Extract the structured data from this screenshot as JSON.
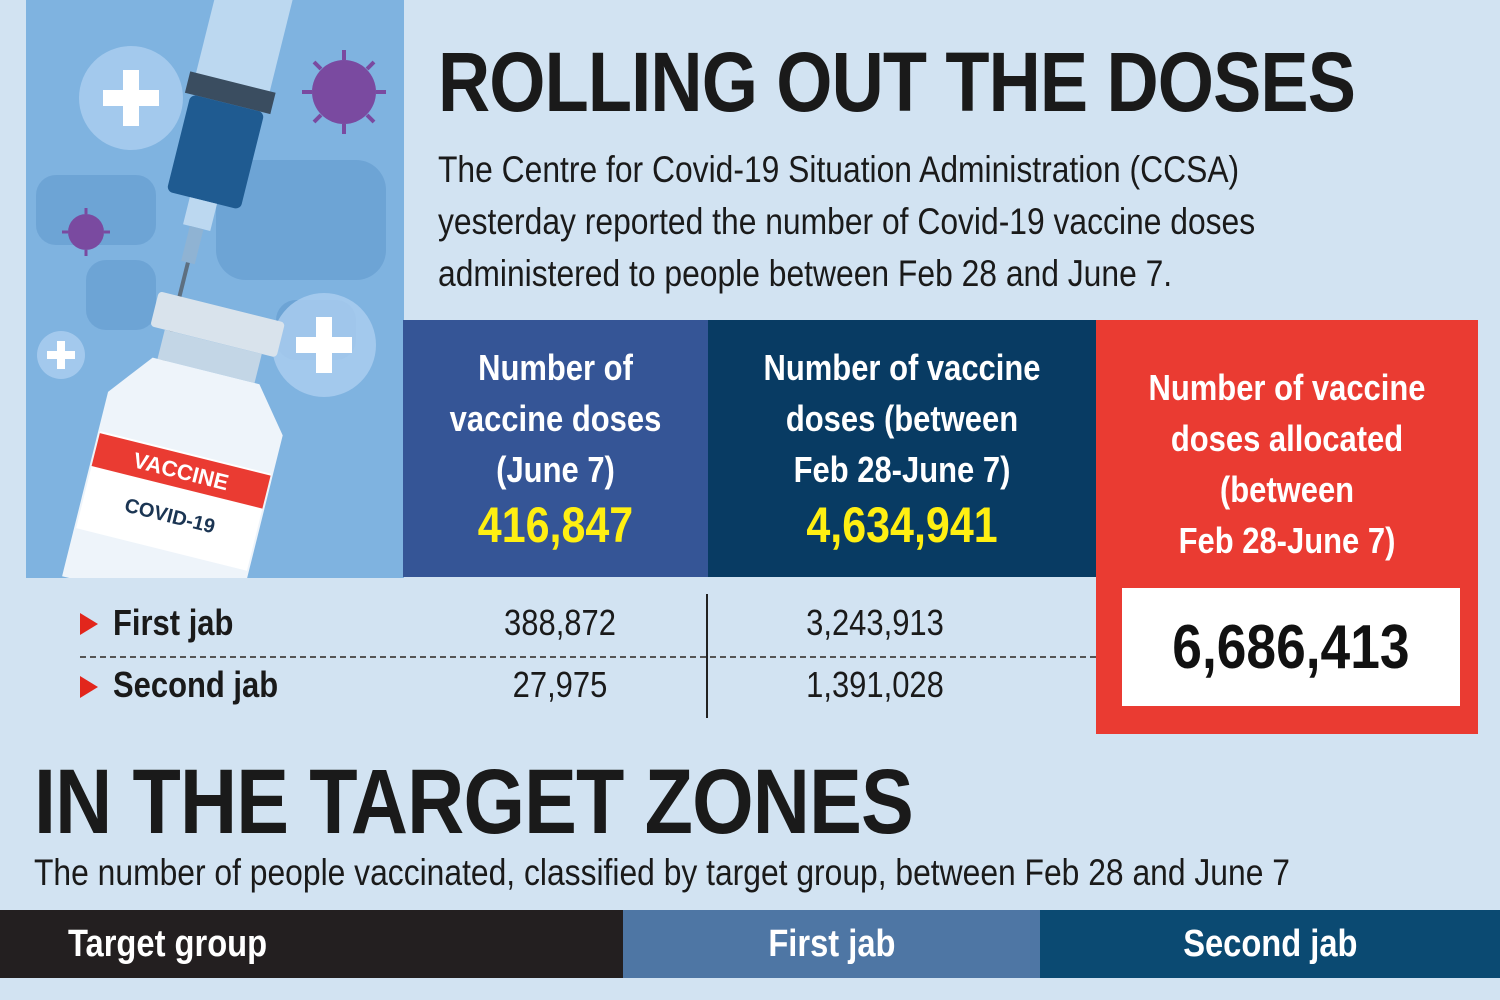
{
  "header": {
    "title": "ROLLING OUT THE DOSES",
    "intro": "The Centre for Covid-19 Situation Administration (CCSA) yesterday reported the number of Covid-19 vaccine doses administered to people between Feb 28 and June 7."
  },
  "illustration": {
    "vial_label_top": "VACCINE",
    "vial_label_bottom": "COVID-19",
    "icons": [
      "syringe-icon",
      "vaccine-vial-icon",
      "virus-icon",
      "plus-bubble-icon",
      "world-map-dots"
    ]
  },
  "stats": {
    "june7": {
      "label": "Number of\nvaccine doses\n(June 7)",
      "value": "416,847"
    },
    "cumulative": {
      "label": "Number of vaccine\ndoses (between\nFeb 28-June 7)",
      "value": "4,634,941"
    },
    "allocated": {
      "label": "Number of vaccine\ndoses allocated\n(between\nFeb 28-June 7)",
      "value": "6,686,413"
    }
  },
  "jabs": {
    "first": {
      "label": "First jab",
      "june7": "388,872",
      "cumulative": "3,243,913"
    },
    "second": {
      "label": "Second jab",
      "june7": "27,975",
      "cumulative": "1,391,028"
    }
  },
  "target_zones": {
    "title": "IN THE TARGET ZONES",
    "subtitle": "The number of people vaccinated, classified by target group, between Feb 28 and June 7",
    "columns": [
      "Target group",
      "First jab",
      "Second jab"
    ]
  },
  "colors": {
    "background": "#d2e3f2",
    "box_june7": "#355596",
    "box_cumulative": "#083b63",
    "box_allocated": "#ea3b32",
    "highlight_number": "#ffef12",
    "arrow": "#e2261c"
  }
}
